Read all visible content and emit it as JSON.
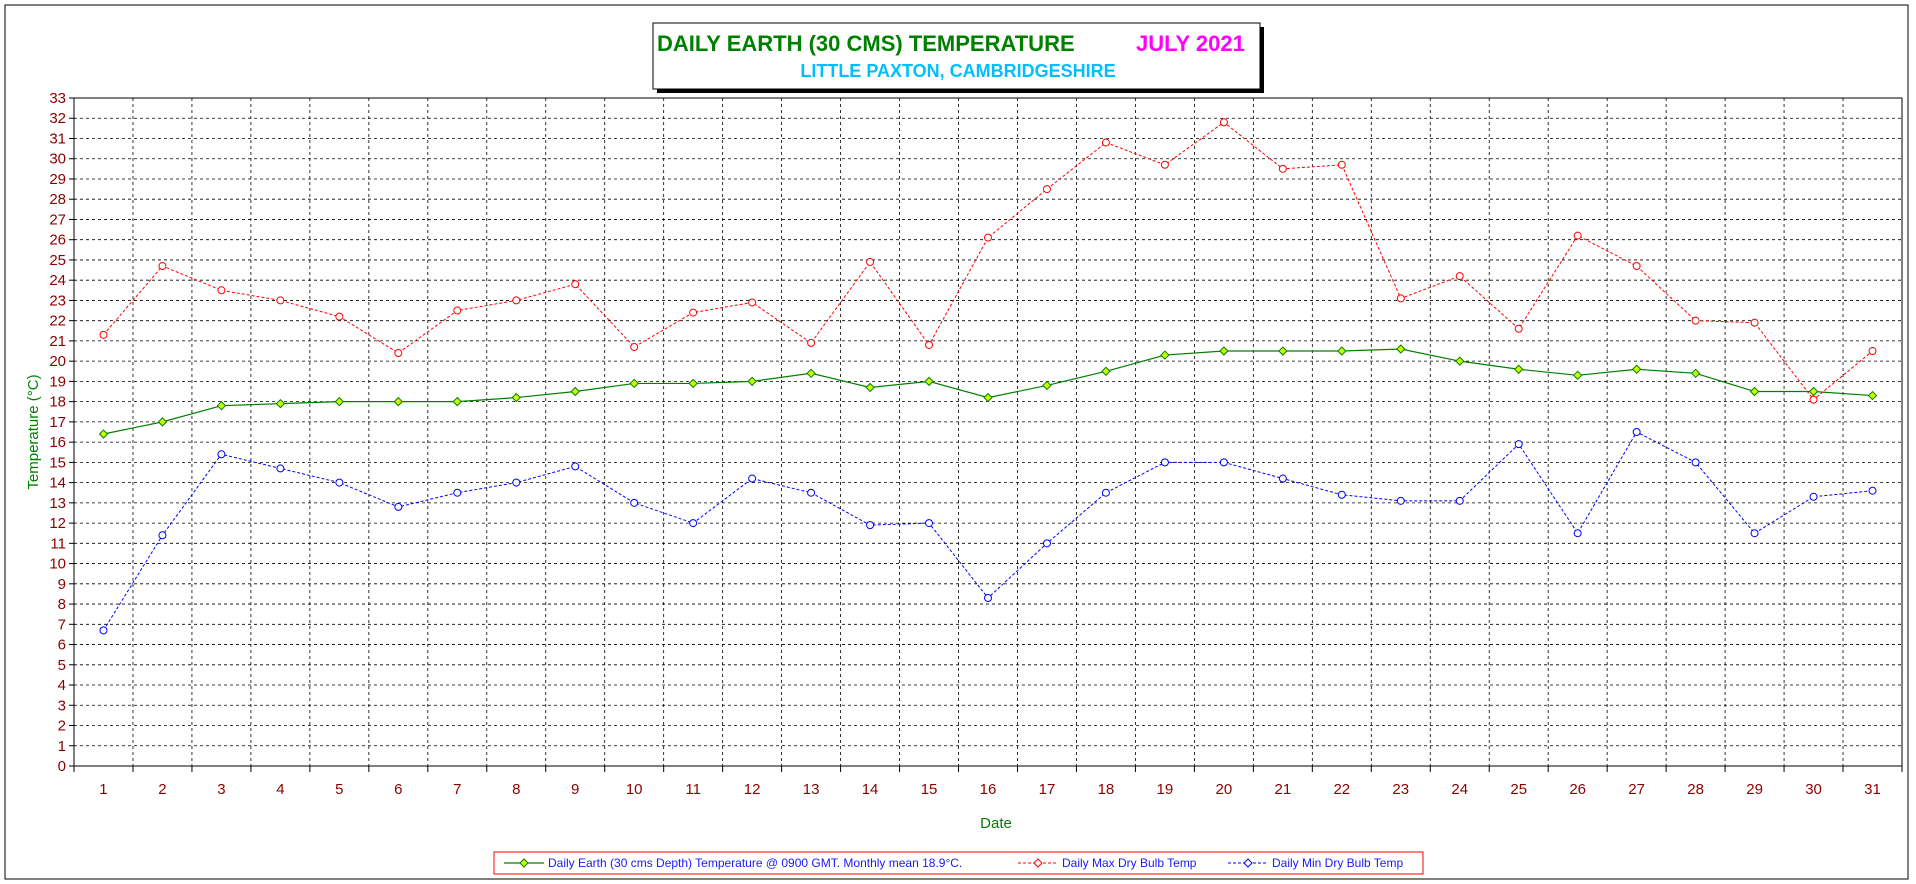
{
  "chart_data": {
    "type": "line",
    "title": "DAILY EARTH (30 CMS) TEMPERATURE",
    "title_month": "JULY 2021",
    "subtitle": "LITTLE PAXTON, CAMBRIDGESHIRE",
    "xlabel": "Date",
    "ylabel": "Temperature (°C)",
    "ylim": [
      0,
      33
    ],
    "y_ticks": [
      "0",
      "1",
      "2",
      "3",
      "4",
      "5",
      "6",
      "7",
      "8",
      "9",
      "10",
      "11",
      "12",
      "13",
      "14",
      "15",
      "16",
      "17",
      "18",
      "19",
      "20",
      "21",
      "22",
      "23",
      "24",
      "25",
      "26",
      "27",
      "28",
      "29",
      "30",
      "31",
      "32",
      "33"
    ],
    "categories": [
      "1",
      "2",
      "3",
      "4",
      "5",
      "6",
      "7",
      "8",
      "9",
      "10",
      "11",
      "12",
      "13",
      "14",
      "15",
      "16",
      "17",
      "18",
      "19",
      "20",
      "21",
      "22",
      "23",
      "24",
      "25",
      "26",
      "27",
      "28",
      "29",
      "30",
      "31"
    ],
    "grid": true,
    "legend_position": "bottom",
    "colors": {
      "earth": "#008000",
      "earth_marker": "#ccff00",
      "max": "#ff0000",
      "min": "#0000ff",
      "tick_text": "#8b0000",
      "axis_title": "#008000",
      "title_main": "#008000",
      "title_month": "#ff00ff",
      "subtitle": "#00bfff",
      "legend_border": "#ff0000",
      "legend_text": "#1a1aff"
    },
    "series": [
      {
        "name": "Daily Earth (30 cms Depth) Temperature @ 0900 GMT. Monthly mean 18.9°C.",
        "key": "earth",
        "style": "solid",
        "values": [
          16.4,
          17.0,
          17.8,
          17.9,
          18.0,
          18.0,
          18.0,
          18.2,
          18.5,
          18.9,
          18.9,
          19.0,
          19.4,
          18.7,
          19.0,
          18.2,
          18.8,
          19.5,
          20.3,
          20.5,
          20.5,
          20.5,
          20.6,
          20.0,
          19.6,
          19.3,
          19.6,
          19.4,
          18.5,
          18.5,
          18.3
        ]
      },
      {
        "name": "Daily Max Dry Bulb Temp",
        "key": "max",
        "style": "dashed",
        "values": [
          21.3,
          24.7,
          23.5,
          23.0,
          22.2,
          20.4,
          22.5,
          23.0,
          23.8,
          20.7,
          22.4,
          22.9,
          20.9,
          24.9,
          20.8,
          26.1,
          28.5,
          30.8,
          29.7,
          31.8,
          29.5,
          29.7,
          23.1,
          24.2,
          21.6,
          26.2,
          24.7,
          22.0,
          21.9,
          18.1,
          20.5
        ]
      },
      {
        "name": "Daily Min Dry Bulb Temp",
        "key": "min",
        "style": "dashed",
        "values": [
          6.7,
          11.4,
          15.4,
          14.7,
          14.0,
          12.8,
          13.5,
          14.0,
          14.8,
          13.0,
          12.0,
          14.2,
          13.5,
          11.9,
          12.0,
          8.3,
          11.0,
          13.5,
          15.0,
          15.0,
          14.2,
          13.4,
          13.1,
          13.1,
          15.9,
          11.5,
          16.5,
          15.0,
          11.5,
          13.3,
          13.6
        ]
      }
    ]
  }
}
